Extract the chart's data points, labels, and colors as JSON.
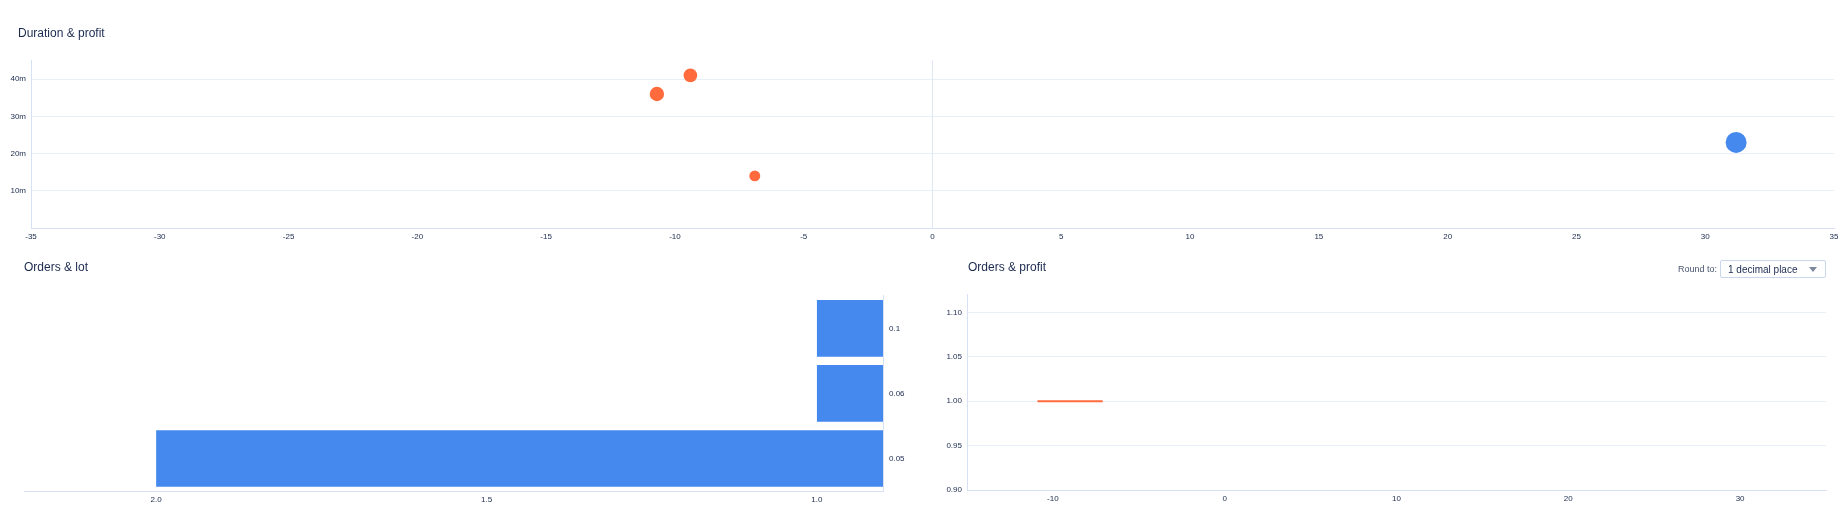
{
  "chart_data": [
    {
      "type": "bubble",
      "title": "Duration & profit",
      "x": [
        -10.7,
        -9.4,
        -6.9,
        31.2
      ],
      "values": [
        36,
        41,
        14,
        23
      ],
      "sizes": [
        0.47,
        0.42,
        0.27,
        1
      ],
      "colors": [
        "#ff6b3d",
        "#ff6b3d",
        "#ff6b3d",
        "#4589ee"
      ],
      "xlim": [
        -35,
        35
      ],
      "xticks": [
        -35,
        -30,
        -25,
        -20,
        -15,
        -10,
        -5,
        0,
        5,
        10,
        15,
        20,
        25,
        30,
        35
      ],
      "ylim": [
        0,
        45
      ],
      "yticks": [
        {
          "value": 10,
          "label": "10m"
        },
        {
          "value": 20,
          "label": "20m"
        },
        {
          "value": 30,
          "label": "30m"
        },
        {
          "value": 40,
          "label": "40m"
        }
      ],
      "grid": "y",
      "ref_lines": [
        {
          "axis": "x",
          "value": 0,
          "color": "#dfe8f5"
        }
      ]
    },
    {
      "type": "bar",
      "title": "Orders & lot",
      "orientation": "horizontal",
      "categories": [
        "0.1",
        "0.06",
        "0.05"
      ],
      "values": [
        1,
        1,
        2
      ],
      "color": "#4589ee",
      "xlim": [
        2.2,
        0.9
      ],
      "xticks": [
        {
          "value": 2,
          "label": "2.0"
        },
        {
          "value": 1.5,
          "label": "1.5"
        },
        {
          "value": 1,
          "label": "1.0"
        }
      ]
    },
    {
      "type": "line",
      "title": "Orders & profit",
      "x": [
        -10.9,
        -7.1
      ],
      "values": [
        1,
        1
      ],
      "color": "#ff6b3d",
      "xlim": [
        -15,
        35
      ],
      "xticks": [
        -10,
        0,
        10,
        20,
        30
      ],
      "ylim": [
        0.9,
        1.12
      ],
      "yticks": [
        {
          "value": 0.9,
          "label": "0.90"
        },
        {
          "value": 0.95,
          "label": "0.95"
        },
        {
          "value": 1,
          "label": "1.00"
        },
        {
          "value": 1.05,
          "label": "1.05"
        },
        {
          "value": 1.1,
          "label": "1.10"
        }
      ],
      "grid": "y",
      "marker": "none",
      "annotations": [
        "Round to:",
        "1 decimal place"
      ]
    }
  ]
}
